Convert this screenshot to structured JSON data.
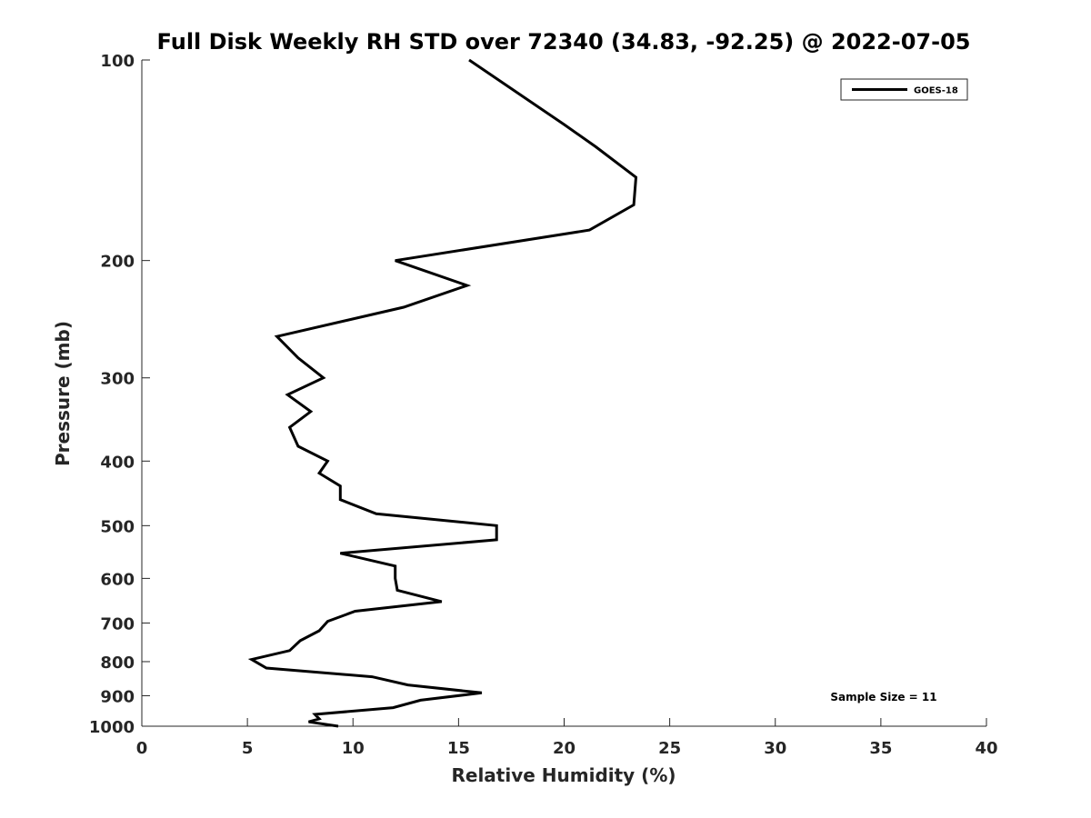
{
  "chart_data": {
    "type": "line",
    "title": "Full Disk Weekly RH STD over 72340 (34.83, -92.25) @ 2022-07-05",
    "xlabel": "Relative Humidity (%)",
    "ylabel": "Pressure (mb)",
    "xlim": [
      0,
      40
    ],
    "ylim": [
      100,
      1000
    ],
    "y_scale": "log",
    "y_reversed": true,
    "grid": false,
    "legend_position": "top-right",
    "x_ticks": [
      0,
      5,
      10,
      15,
      20,
      25,
      30,
      35,
      40
    ],
    "y_ticks": [
      100,
      200,
      300,
      400,
      500,
      600,
      700,
      800,
      900,
      1000
    ],
    "annotation": "Sample Size = 11",
    "series": [
      {
        "name": "GOES-18",
        "color": "#000000",
        "points": [
          [
            15.5,
            100
          ],
          [
            20.0,
            125
          ],
          [
            21.5,
            135
          ],
          [
            23.4,
            150
          ],
          [
            23.3,
            165
          ],
          [
            21.2,
            180
          ],
          [
            12.0,
            200
          ],
          [
            15.4,
            218
          ],
          [
            12.4,
            235
          ],
          [
            6.4,
            260
          ],
          [
            7.4,
            280
          ],
          [
            8.6,
            300
          ],
          [
            6.9,
            318
          ],
          [
            8.0,
            337
          ],
          [
            7.0,
            356
          ],
          [
            7.4,
            380
          ],
          [
            8.8,
            400
          ],
          [
            8.4,
            417
          ],
          [
            9.4,
            436
          ],
          [
            9.4,
            457
          ],
          [
            11.1,
            480
          ],
          [
            16.8,
            500
          ],
          [
            16.8,
            525
          ],
          [
            9.4,
            550
          ],
          [
            12.0,
            575
          ],
          [
            12.0,
            600
          ],
          [
            12.1,
            625
          ],
          [
            14.2,
            650
          ],
          [
            10.1,
            672
          ],
          [
            8.8,
            696
          ],
          [
            8.4,
            719
          ],
          [
            7.5,
            744
          ],
          [
            7.0,
            770
          ],
          [
            5.2,
            794
          ],
          [
            5.9,
            818
          ],
          [
            10.9,
            843
          ],
          [
            12.6,
            867
          ],
          [
            16.1,
            891
          ],
          [
            13.2,
            914
          ],
          [
            11.9,
            938
          ],
          [
            8.2,
            960
          ],
          [
            8.4,
            975
          ],
          [
            7.9,
            985
          ],
          [
            9.3,
            1000
          ]
        ]
      }
    ]
  }
}
